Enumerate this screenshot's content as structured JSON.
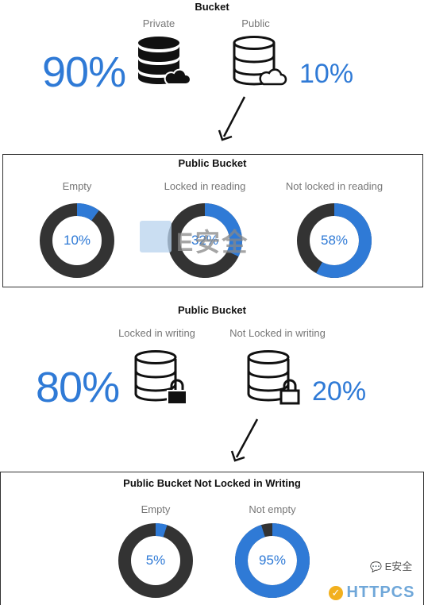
{
  "colors": {
    "accent": "#2f7ad6",
    "dark": "#333333",
    "wm_orange": "#f2b01e"
  },
  "top": {
    "title": "Bucket",
    "private_label": "Private",
    "public_label": "Public",
    "private_pct": "90%",
    "public_pct": "10%",
    "private_icon": "database-cloud-icon",
    "public_icon": "database-cloud-outline-icon"
  },
  "panel1": {
    "title": "Public Bucket",
    "items": [
      {
        "label": "Empty",
        "value": 10,
        "text": "10%"
      },
      {
        "label": "Locked in reading",
        "value": 32,
        "text": "32%"
      },
      {
        "label": "Not locked in reading",
        "value": 58,
        "text": "58%"
      }
    ]
  },
  "middle": {
    "title": "Public Bucket",
    "locked_label": "Locked in writing",
    "notlocked_label": "Not Locked in writing",
    "locked_pct": "80%",
    "notlocked_pct": "20%",
    "locked_icon": "database-lock-icon",
    "notlocked_icon": "database-lock-outline-icon"
  },
  "panel2": {
    "title": "Public Bucket Not Locked in Writing",
    "items": [
      {
        "label": "Empty",
        "value": 5,
        "text": "5%"
      },
      {
        "label": "Not empty",
        "value": 95,
        "text": "95%"
      }
    ]
  },
  "watermark": {
    "center_text": "E安全",
    "corner_text": "E安全",
    "logo_text": "HTTPCS"
  }
}
